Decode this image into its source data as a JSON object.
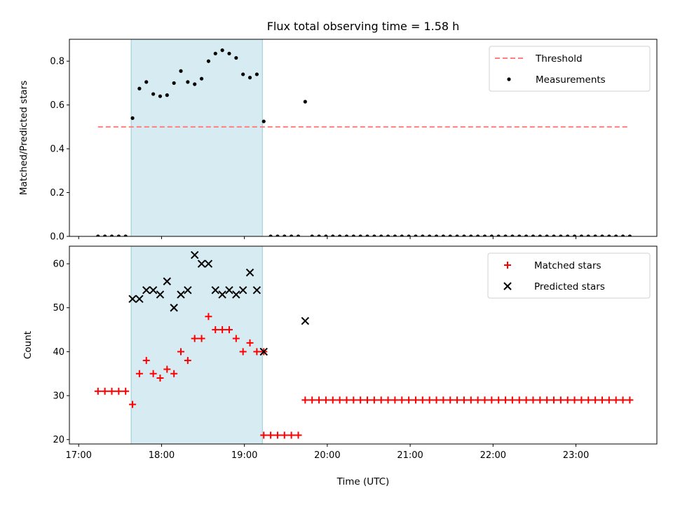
{
  "chart_data": {
    "title": "Flux total observing time = 1.58 h",
    "xlabel": "Time (UTC)",
    "x_ticks": [
      "17:00",
      "18:00",
      "19:00",
      "20:00",
      "21:00",
      "22:00",
      "23:00"
    ],
    "shaded_span": {
      "start": "17:38",
      "end": "19:13",
      "color": "#add8e6"
    },
    "panels": [
      {
        "type": "scatter",
        "ylabel": "Matched/Predicted stars",
        "ylim": [
          0,
          0.9
        ],
        "y_ticks": [
          "0.0",
          "0.2",
          "0.4",
          "0.6",
          "0.8"
        ],
        "y_tick_values": [
          0,
          0.2,
          0.4,
          0.6,
          0.8
        ],
        "legend": {
          "placement": "top-right",
          "entries": [
            "Threshold",
            "Measurements"
          ]
        },
        "threshold": {
          "name": "Threshold",
          "value": 0.5,
          "x_start": "17:14",
          "x_end": "23:38",
          "color": "#ff7f7f"
        },
        "series": [
          {
            "name": "Measurements",
            "color": "#000000",
            "points": [
              [
                "17:14",
                0
              ],
              [
                "17:19",
                0
              ],
              [
                "17:24",
                0
              ],
              [
                "17:29",
                0
              ],
              [
                "17:34",
                0
              ],
              [
                "17:39",
                0.54
              ],
              [
                "17:44",
                0.675
              ],
              [
                "17:49",
                0.705
              ],
              [
                "17:54",
                0.65
              ],
              [
                "17:59",
                0.64
              ],
              [
                "18:04",
                0.645
              ],
              [
                "18:09",
                0.7
              ],
              [
                "18:14",
                0.755
              ],
              [
                "18:19",
                0.705
              ],
              [
                "18:24",
                0.695
              ],
              [
                "18:29",
                0.72
              ],
              [
                "18:34",
                0.8
              ],
              [
                "18:39",
                0.835
              ],
              [
                "18:44",
                0.85
              ],
              [
                "18:49",
                0.835
              ],
              [
                "18:54",
                0.815
              ],
              [
                "18:59",
                0.74
              ],
              [
                "19:04",
                0.725
              ],
              [
                "19:09",
                0.74
              ],
              [
                "19:14",
                0.525
              ],
              [
                "19:19",
                0
              ],
              [
                "19:24",
                0
              ],
              [
                "19:29",
                0
              ],
              [
                "19:34",
                0
              ],
              [
                "19:39",
                0
              ],
              [
                "19:44",
                0.615
              ],
              [
                "19:49",
                0
              ],
              [
                "19:54",
                0
              ],
              [
                "19:59",
                0
              ],
              [
                "20:04",
                0
              ],
              [
                "20:09",
                0
              ],
              [
                "20:14",
                0
              ],
              [
                "20:19",
                0
              ],
              [
                "20:24",
                0
              ],
              [
                "20:29",
                0
              ],
              [
                "20:34",
                0
              ],
              [
                "20:39",
                0
              ],
              [
                "20:44",
                0
              ],
              [
                "20:49",
                0
              ],
              [
                "20:54",
                0
              ],
              [
                "20:59",
                0
              ],
              [
                "21:04",
                0
              ],
              [
                "21:09",
                0
              ],
              [
                "21:14",
                0
              ],
              [
                "21:19",
                0
              ],
              [
                "21:24",
                0
              ],
              [
                "21:29",
                0
              ],
              [
                "21:34",
                0
              ],
              [
                "21:39",
                0
              ],
              [
                "21:44",
                0
              ],
              [
                "21:49",
                0
              ],
              [
                "21:54",
                0
              ],
              [
                "21:59",
                0
              ],
              [
                "22:04",
                0
              ],
              [
                "22:09",
                0
              ],
              [
                "22:14",
                0
              ],
              [
                "22:19",
                0
              ],
              [
                "22:24",
                0
              ],
              [
                "22:29",
                0
              ],
              [
                "22:34",
                0
              ],
              [
                "22:39",
                0
              ],
              [
                "22:44",
                0
              ],
              [
                "22:49",
                0
              ],
              [
                "22:54",
                0
              ],
              [
                "22:59",
                0
              ],
              [
                "23:04",
                0
              ],
              [
                "23:09",
                0
              ],
              [
                "23:14",
                0
              ],
              [
                "23:19",
                0
              ],
              [
                "23:24",
                0
              ],
              [
                "23:29",
                0
              ],
              [
                "23:34",
                0
              ],
              [
                "23:39",
                0
              ]
            ]
          }
        ]
      },
      {
        "type": "scatter",
        "ylabel": "Count",
        "ylim": [
          19,
          64
        ],
        "y_ticks": [
          "20",
          "30",
          "40",
          "50",
          "60"
        ],
        "y_tick_values": [
          20,
          30,
          40,
          50,
          60
        ],
        "legend": {
          "placement": "top-right",
          "entries": [
            "Matched stars",
            "Predicted stars"
          ]
        },
        "series": [
          {
            "name": "Matched stars",
            "marker": "plus",
            "color": "#ff0000",
            "points": [
              [
                "17:14",
                31
              ],
              [
                "17:19",
                31
              ],
              [
                "17:24",
                31
              ],
              [
                "17:29",
                31
              ],
              [
                "17:34",
                31
              ],
              [
                "17:39",
                28
              ],
              [
                "17:44",
                35
              ],
              [
                "17:49",
                38
              ],
              [
                "17:54",
                35
              ],
              [
                "17:59",
                34
              ],
              [
                "18:04",
                36
              ],
              [
                "18:09",
                35
              ],
              [
                "18:14",
                40
              ],
              [
                "18:19",
                38
              ],
              [
                "18:24",
                43
              ],
              [
                "18:29",
                43
              ],
              [
                "18:34",
                48
              ],
              [
                "18:39",
                45
              ],
              [
                "18:44",
                45
              ],
              [
                "18:49",
                45
              ],
              [
                "18:54",
                43
              ],
              [
                "18:59",
                40
              ],
              [
                "19:04",
                42
              ],
              [
                "19:09",
                40
              ],
              [
                "19:14",
                40
              ],
              [
                "19:14",
                21
              ],
              [
                "19:19",
                21
              ],
              [
                "19:24",
                21
              ],
              [
                "19:29",
                21
              ],
              [
                "19:34",
                21
              ],
              [
                "19:39",
                21
              ],
              [
                "19:44",
                29
              ],
              [
                "19:49",
                29
              ],
              [
                "19:54",
                29
              ],
              [
                "19:59",
                29
              ],
              [
                "20:04",
                29
              ],
              [
                "20:09",
                29
              ],
              [
                "20:14",
                29
              ],
              [
                "20:19",
                29
              ],
              [
                "20:24",
                29
              ],
              [
                "20:29",
                29
              ],
              [
                "20:34",
                29
              ],
              [
                "20:39",
                29
              ],
              [
                "20:44",
                29
              ],
              [
                "20:49",
                29
              ],
              [
                "20:54",
                29
              ],
              [
                "20:59",
                29
              ],
              [
                "21:04",
                29
              ],
              [
                "21:09",
                29
              ],
              [
                "21:14",
                29
              ],
              [
                "21:19",
                29
              ],
              [
                "21:24",
                29
              ],
              [
                "21:29",
                29
              ],
              [
                "21:34",
                29
              ],
              [
                "21:39",
                29
              ],
              [
                "21:44",
                29
              ],
              [
                "21:49",
                29
              ],
              [
                "21:54",
                29
              ],
              [
                "21:59",
                29
              ],
              [
                "22:04",
                29
              ],
              [
                "22:09",
                29
              ],
              [
                "22:14",
                29
              ],
              [
                "22:19",
                29
              ],
              [
                "22:24",
                29
              ],
              [
                "22:29",
                29
              ],
              [
                "22:34",
                29
              ],
              [
                "22:39",
                29
              ],
              [
                "22:44",
                29
              ],
              [
                "22:49",
                29
              ],
              [
                "22:54",
                29
              ],
              [
                "22:59",
                29
              ],
              [
                "23:04",
                29
              ],
              [
                "23:09",
                29
              ],
              [
                "23:14",
                29
              ],
              [
                "23:19",
                29
              ],
              [
                "23:24",
                29
              ],
              [
                "23:29",
                29
              ],
              [
                "23:34",
                29
              ],
              [
                "23:39",
                29
              ]
            ]
          },
          {
            "name": "Predicted stars",
            "marker": "x",
            "color": "#000000",
            "points": [
              [
                "17:39",
                52
              ],
              [
                "17:44",
                52
              ],
              [
                "17:49",
                54
              ],
              [
                "17:54",
                54
              ],
              [
                "17:59",
                53
              ],
              [
                "18:04",
                56
              ],
              [
                "18:09",
                50
              ],
              [
                "18:14",
                53
              ],
              [
                "18:19",
                54
              ],
              [
                "18:24",
                62
              ],
              [
                "18:29",
                60
              ],
              [
                "18:34",
                60
              ],
              [
                "18:39",
                54
              ],
              [
                "18:44",
                53
              ],
              [
                "18:49",
                54
              ],
              [
                "18:54",
                53
              ],
              [
                "18:59",
                54
              ],
              [
                "19:04",
                58
              ],
              [
                "19:09",
                54
              ],
              [
                "19:14",
                40
              ],
              [
                "19:44",
                47
              ]
            ]
          }
        ]
      }
    ]
  }
}
